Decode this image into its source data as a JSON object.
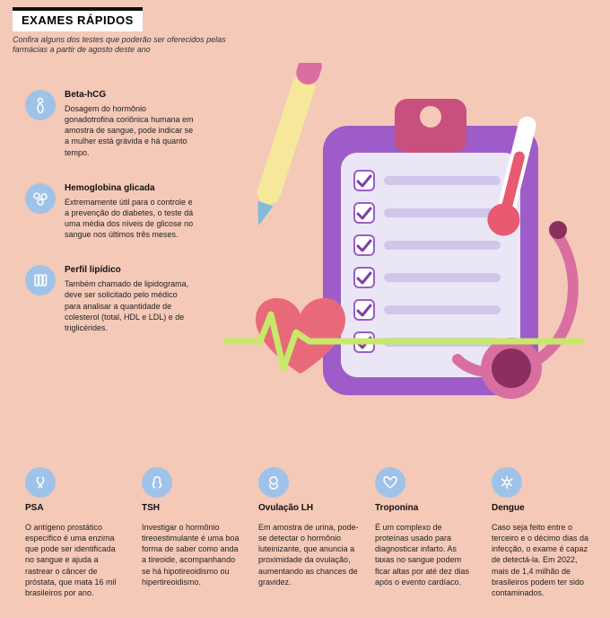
{
  "header": {
    "title": "EXAMES RÁPIDOS",
    "subtitle": "Confira alguns dos testes que poderão ser oferecidos pelas farmácias a partir de agosto deste ano"
  },
  "colors": {
    "background": "#f5c9b8",
    "icon_circle": "#9fc3e8",
    "icon_stroke": "#ffffff",
    "clipboard_back": "#9d5cc7",
    "clipboard_front": "#e8e4f5",
    "clipboard_clip": "#c94f7e",
    "pen_body": "#f6e89a",
    "pen_cap": "#d96fa0",
    "thermometer": "#e85a6f",
    "heart": "#e86a7a",
    "steth": "#d96fa0",
    "ecg_line": "#c7e86a",
    "check": "#7e3fa8"
  },
  "illustration": {
    "checklist_rows": 6
  },
  "items_left": [
    {
      "icon": "pregnancy",
      "title": "Beta-hCG",
      "desc": "Dosagem do hormônio gonadotrofina coriônica humana em amostra de sangue, pode indicar se a mulher está grávida e há quanto tempo."
    },
    {
      "icon": "cells",
      "title": "Hemoglobina glicada",
      "desc": "Extremamente útil para o controle e a prevenção do diabetes, o teste dá uma média dos níveis de glicose no sangue nos últimos três meses."
    },
    {
      "icon": "vials",
      "title": "Perfil lipídico",
      "desc": "Também chamado de lipidograma, deve ser solicitado pelo médico para analisar a quantidade de colesterol (total, HDL e LDL) e de triglicérides."
    }
  ],
  "items_bottom": [
    {
      "icon": "ribbon",
      "title": "PSA",
      "desc": "O antígeno prostático específico é uma enzima que pode ser identificada no sangue e ajuda a rastrear o câncer de próstata, que mata 16 mil brasileiros por ano."
    },
    {
      "icon": "thyroid",
      "title": "TSH",
      "desc": "Investigar o hormônio tireoestimulante é uma boa forma de saber como anda a tireoide, acompanhando se há hipotireoidismo ou hipertireoidismo."
    },
    {
      "icon": "ovary",
      "title": "Ovulação LH",
      "desc": "Em amostra de urina, pode-se detectar o hormônio luteinizante, que anuncia a proximidade da ovulação, aumentando as chances de gravidez."
    },
    {
      "icon": "heart",
      "title": "Troponina",
      "desc": "É um complexo de proteínas usado para diagnosticar infarto. As taxas no sangue podem ficar altas por até dez dias após o evento cardíaco."
    },
    {
      "icon": "mosquito",
      "title": "Dengue",
      "desc": "Caso seja feito entre o terceiro e o décimo dias da infecção, o exame é capaz de detectá-la. Em 2022, mais de 1,4 milhão de brasileiros podem ter sido contaminados."
    }
  ]
}
